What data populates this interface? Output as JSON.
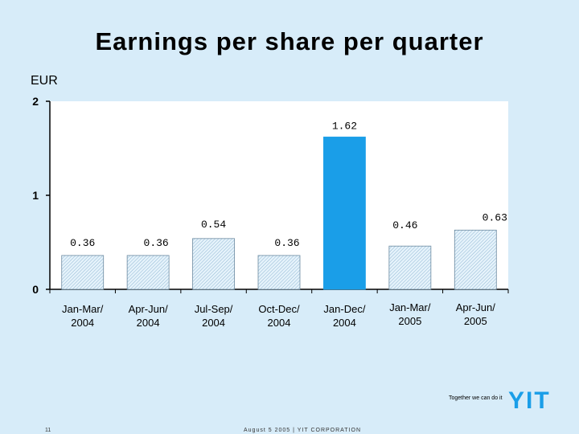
{
  "title": "Earnings per share per quarter",
  "unit_label": "EUR",
  "colors": {
    "hatched_bar": "#c8e2f5",
    "highlight_bar": "#1a9ee8",
    "background": "#d7ecf9"
  },
  "chart_data": {
    "type": "bar",
    "title": "Earnings per share per quarter",
    "ylabel": "EUR",
    "xlabel": "",
    "ylim": [
      0,
      2
    ],
    "yticks": [
      0,
      1,
      2
    ],
    "categories": [
      "Jan-Mar/\n2004",
      "Apr-Jun/\n2004",
      "Jul-Sep/\n2004",
      "Oct-Dec/\n2004",
      "Jan-Dec/\n2004",
      "Jan-Mar/\n2005",
      "Apr-Jun/\n2005"
    ],
    "values": [
      0.36,
      0.36,
      0.54,
      0.36,
      1.62,
      0.46,
      0.63
    ],
    "data_labels": [
      "0.36",
      "0.36",
      "0.54",
      "0.36",
      "1.62",
      "0.46",
      "0.63"
    ],
    "highlighted_index": 4,
    "grid": false,
    "legend": "none"
  },
  "footer": {
    "tagline": "Together we can do it",
    "logo_text": "YIT",
    "page_number": "11",
    "center_text": "August 5 2005  |  YIT CORPORATION"
  }
}
